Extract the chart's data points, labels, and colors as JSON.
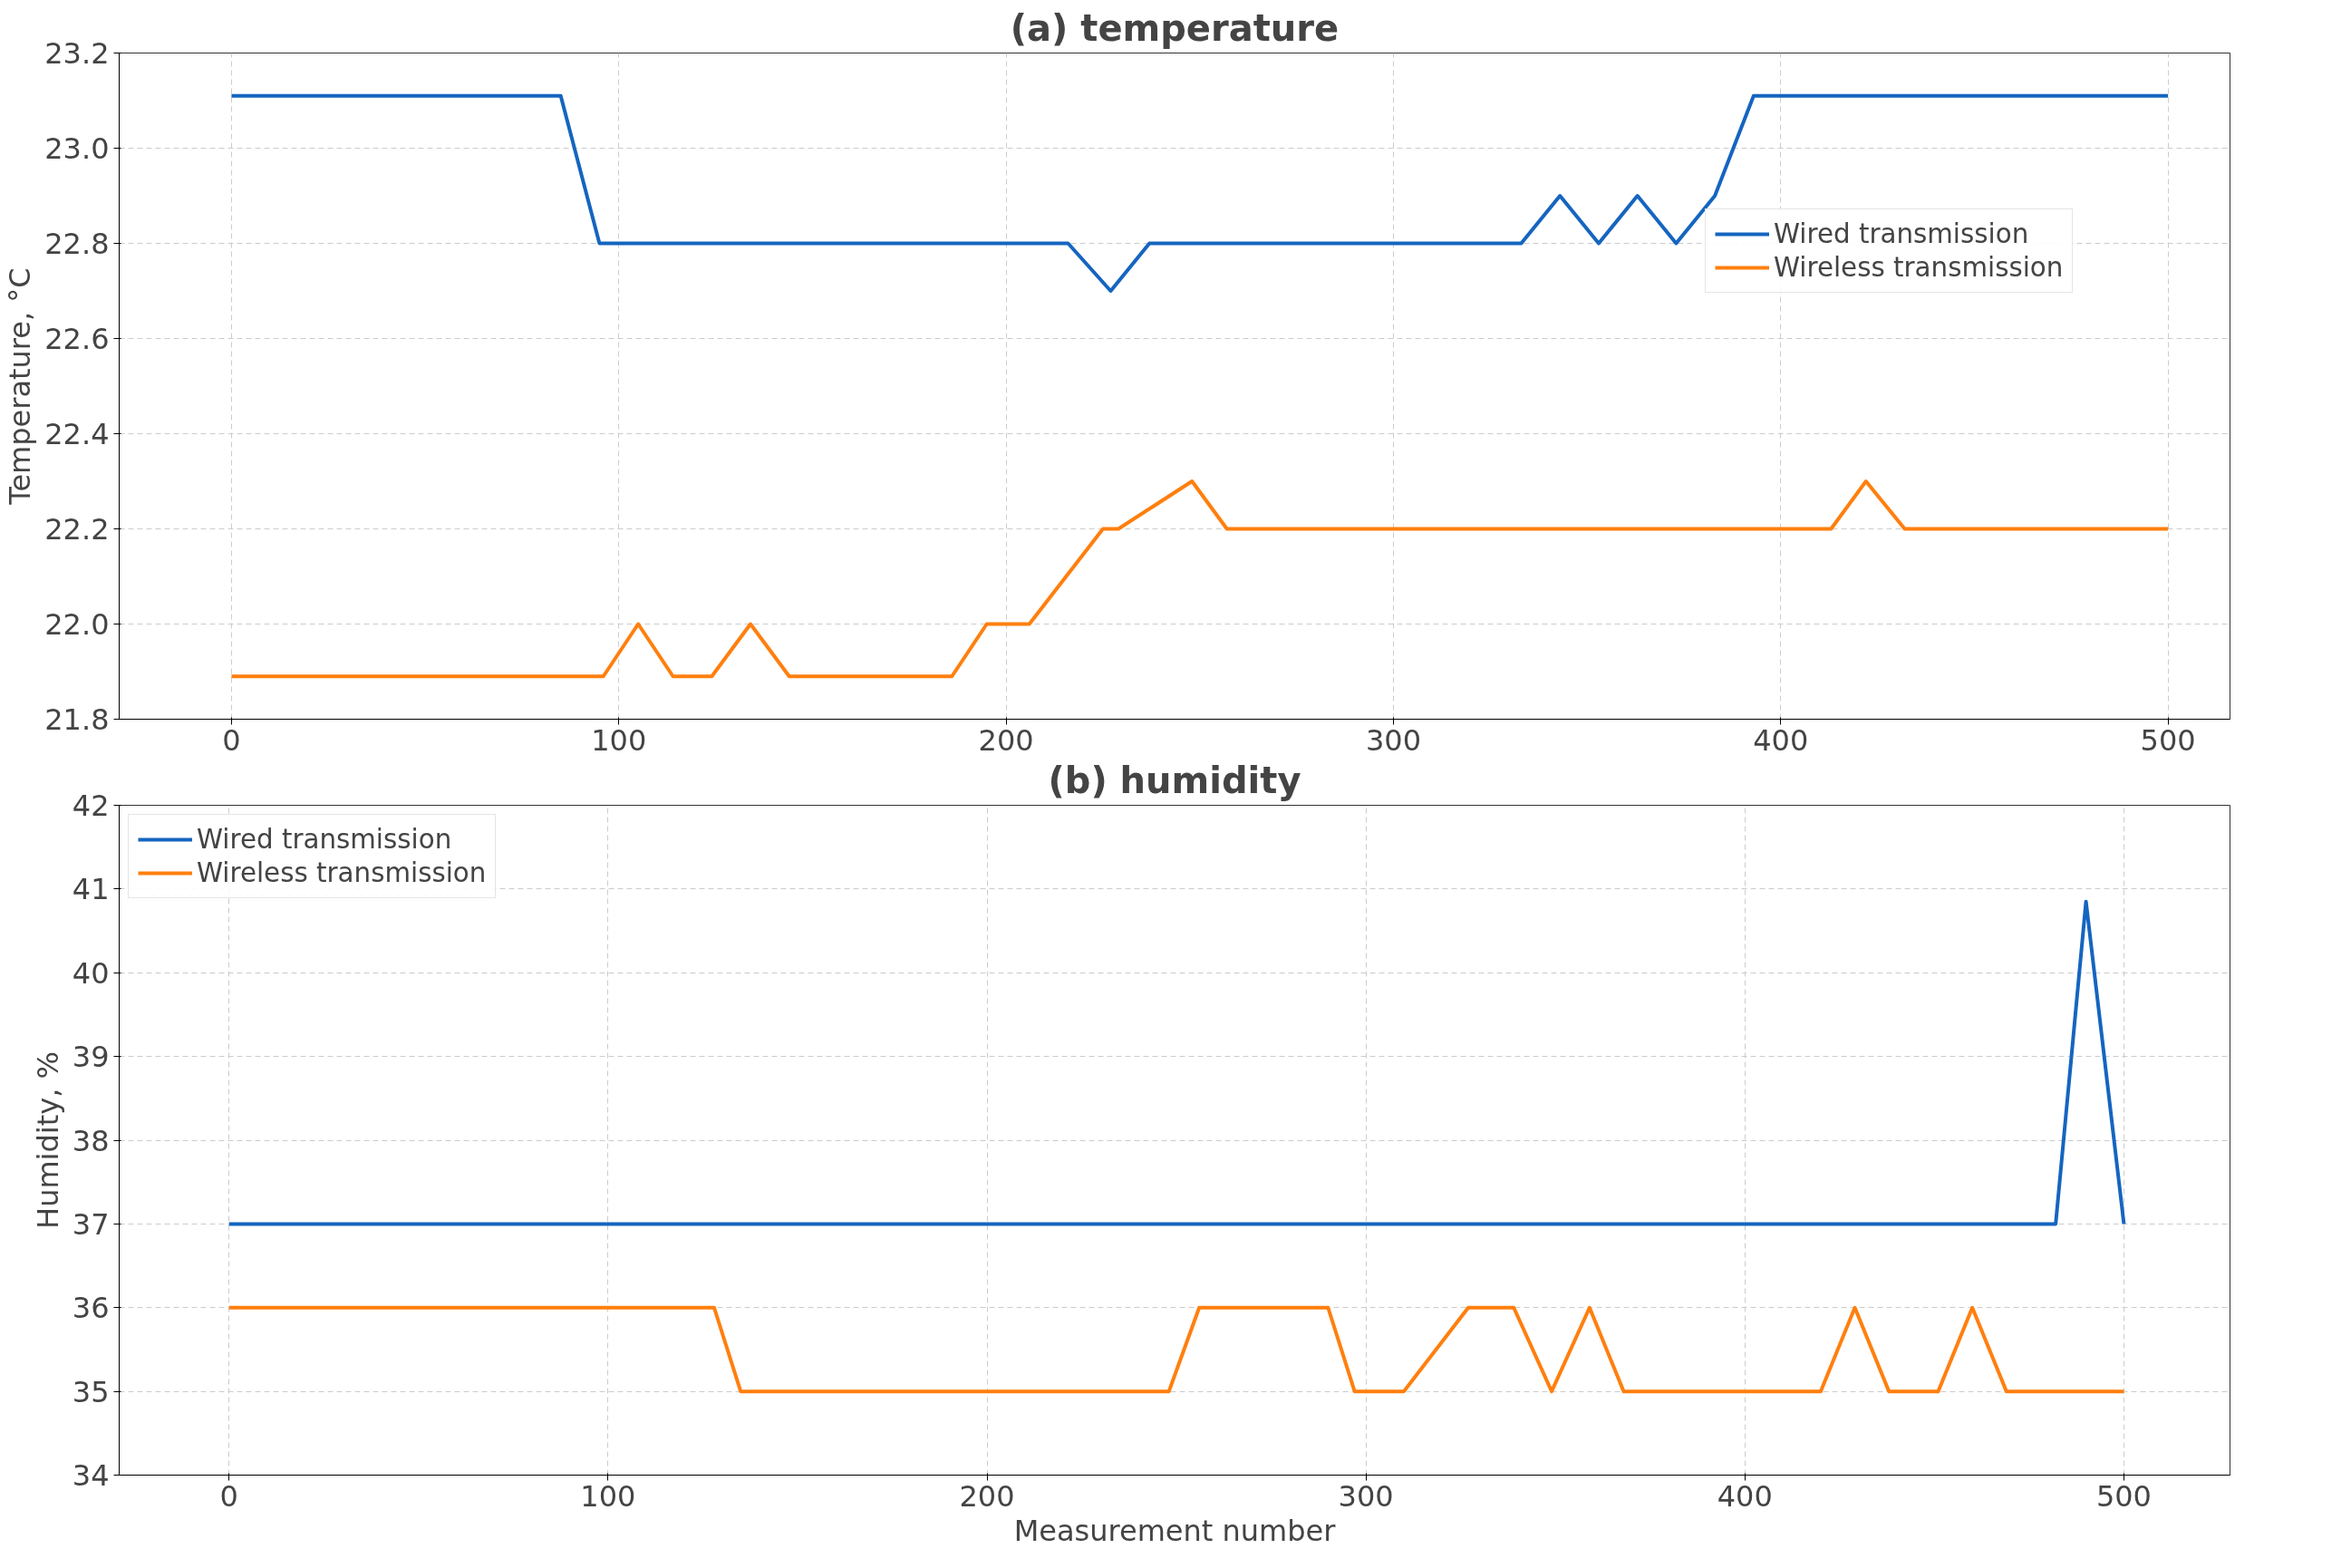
{
  "chart_data": [
    {
      "type": "line",
      "title": "(a) temperature",
      "ylabel": "Temperature, °C",
      "xlim": [
        -29,
        516
      ],
      "xticks": [
        0,
        100,
        200,
        300,
        400,
        500
      ],
      "ylim": [
        21.8,
        23.2
      ],
      "yticks": [
        {
          "value": 21.8,
          "label": "21.8"
        },
        {
          "value": 22.0,
          "label": "22.0"
        },
        {
          "value": 22.2,
          "label": "22.2"
        },
        {
          "value": 22.4,
          "label": "22.4"
        },
        {
          "value": 22.6,
          "label": "22.6"
        },
        {
          "value": 22.8,
          "label": "22.8"
        },
        {
          "value": 23.0,
          "label": "23.0"
        },
        {
          "value": 23.2,
          "label": "23.2"
        }
      ],
      "grid": true,
      "legend": "center right",
      "line_style": "solid",
      "series": [
        {
          "name": "Wired transmission",
          "color": "#1565c0",
          "x": [
            0,
            85,
            95,
            216,
            227,
            237,
            333,
            343,
            353,
            363,
            373,
            383,
            393,
            500
          ],
          "values": [
            23.11,
            23.11,
            22.8,
            22.8,
            22.7,
            22.8,
            22.8,
            22.9,
            22.8,
            22.9,
            22.8,
            22.9,
            23.11,
            23.11
          ]
        },
        {
          "name": "Wireless transmission",
          "color": "#ff7f0e",
          "x": [
            0,
            96,
            105,
            114,
            124,
            134,
            144,
            186,
            195,
            206,
            225,
            229,
            248,
            257,
            413,
            422,
            432,
            500
          ],
          "values": [
            21.89,
            21.89,
            22.0,
            21.89,
            21.89,
            22.0,
            21.89,
            21.89,
            22.0,
            22.0,
            22.2,
            22.2,
            22.3,
            22.2,
            22.2,
            22.3,
            22.2,
            22.2
          ]
        }
      ]
    },
    {
      "type": "line",
      "title": "(b) humidity",
      "xlabel": "Measurement number",
      "ylabel": "Humidity, %",
      "xlim": [
        -29,
        528
      ],
      "xticks": [
        0,
        100,
        200,
        300,
        400,
        500
      ],
      "ylim": [
        34,
        42
      ],
      "yticks": [
        34,
        35,
        36,
        37,
        38,
        39,
        40,
        41,
        42
      ],
      "grid": true,
      "legend": "top left",
      "line_style": "solid",
      "series": [
        {
          "name": "Wired transmission",
          "color": "#1565c0",
          "x": [
            0,
            482,
            490,
            500
          ],
          "values": [
            37,
            37,
            40.85,
            37
          ]
        },
        {
          "name": "Wireless transmission",
          "color": "#ff7f0e",
          "x": [
            0,
            128,
            135,
            248,
            256,
            290,
            297,
            310,
            327,
            339,
            349,
            359,
            368,
            420,
            429,
            438,
            451,
            460,
            469,
            500
          ],
          "values": [
            36,
            36,
            35,
            35,
            36,
            36,
            35,
            35,
            36,
            36,
            35,
            36,
            35,
            35,
            36,
            35,
            35,
            36,
            35,
            35
          ]
        }
      ]
    }
  ]
}
